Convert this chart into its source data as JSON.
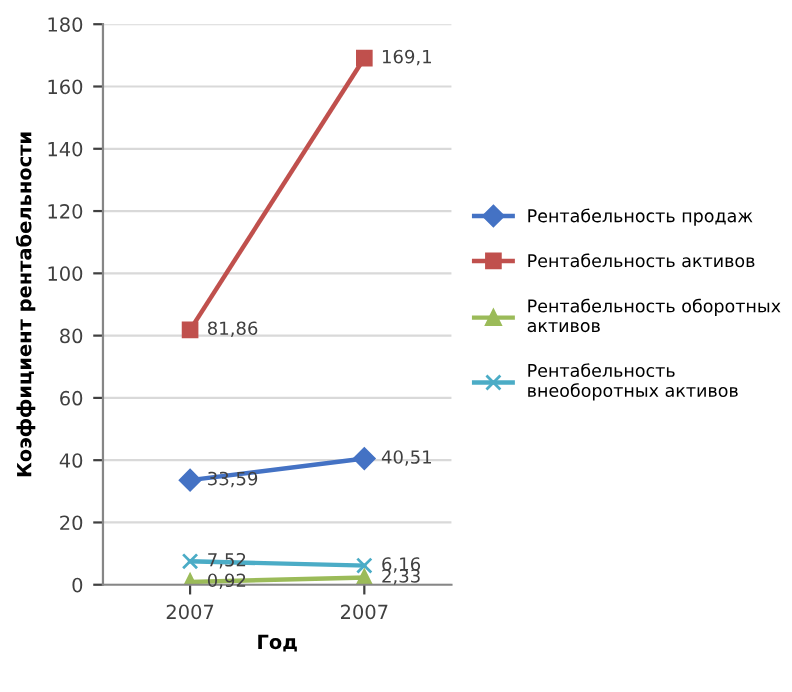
{
  "chart_data": {
    "type": "line",
    "xlabel": "Год",
    "ylabel": "Коэффициент рентабельности",
    "categories": [
      "2007",
      "2007"
    ],
    "series": [
      {
        "name": "Рентабельность продаж",
        "color": "#4472c4",
        "marker": "diamond",
        "values": [
          33.59,
          40.51
        ],
        "value_labels": [
          "33,59",
          "40,51"
        ]
      },
      {
        "name": "Рентабельность активов",
        "color": "#c0504d",
        "marker": "square",
        "values": [
          81.86,
          169.1
        ],
        "value_labels": [
          "81,86",
          "169,1"
        ]
      },
      {
        "name": "Рентабельность оборотных\nактивов",
        "color": "#9bbb59",
        "marker": "triangle",
        "values": [
          0.92,
          2.33
        ],
        "value_labels": [
          "0,92",
          "2,33"
        ]
      },
      {
        "name": "Рентабельность\nвнеоборотных активов",
        "color": "#4bacc6",
        "marker": "cross",
        "values": [
          7.52,
          6.16
        ],
        "value_labels": [
          "7,52",
          "6,16"
        ]
      }
    ],
    "ylim": [
      0,
      180
    ],
    "yticks": [
      0,
      20,
      40,
      60,
      80,
      100,
      120,
      140,
      160,
      180
    ],
    "grid": "y",
    "legend": "right"
  }
}
